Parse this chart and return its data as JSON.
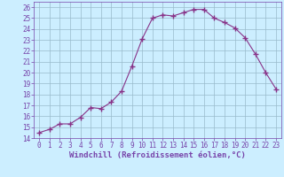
{
  "x": [
    0,
    1,
    2,
    3,
    4,
    5,
    6,
    7,
    8,
    9,
    10,
    11,
    12,
    13,
    14,
    15,
    16,
    17,
    18,
    19,
    20,
    21,
    22,
    23
  ],
  "y": [
    14.5,
    14.8,
    15.3,
    15.3,
    15.9,
    16.8,
    16.7,
    17.3,
    18.3,
    20.6,
    23.1,
    25.0,
    25.3,
    25.2,
    25.5,
    25.8,
    25.8,
    25.0,
    24.6,
    24.1,
    23.2,
    21.7,
    20.0,
    18.5
  ],
  "line_color": "#883388",
  "marker": "+",
  "marker_size": 4,
  "bg_color": "#cceeff",
  "grid_color": "#99bbcc",
  "xlabel": "Windchill (Refroidissement éolien,°C)",
  "xlabel_fontsize": 6.5,
  "tick_fontsize": 5.5,
  "xlim": [
    -0.5,
    23.5
  ],
  "ylim": [
    14,
    26.5
  ],
  "yticks": [
    14,
    15,
    16,
    17,
    18,
    19,
    20,
    21,
    22,
    23,
    24,
    25,
    26
  ],
  "xticks": [
    0,
    1,
    2,
    3,
    4,
    5,
    6,
    7,
    8,
    9,
    10,
    11,
    12,
    13,
    14,
    15,
    16,
    17,
    18,
    19,
    20,
    21,
    22,
    23
  ],
  "spine_color": "#7744aa",
  "tick_color": "#7744aa",
  "label_color": "#7744aa"
}
